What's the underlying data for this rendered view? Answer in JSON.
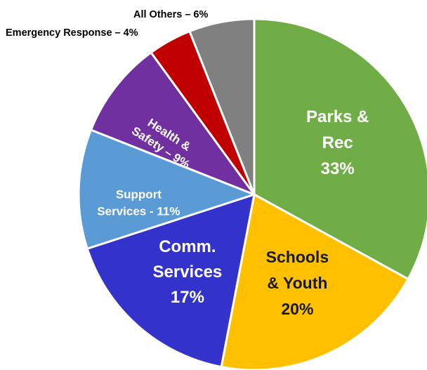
{
  "chart_data": {
    "type": "pie",
    "title": "",
    "slices": [
      {
        "name": "Parks & Rec",
        "value": 33,
        "color": "#70AD47",
        "label_lines": [
          "Parks &",
          "Rec",
          "33%"
        ],
        "label_color": "#ffffff"
      },
      {
        "name": "Schools & Youth",
        "value": 20,
        "color": "#FFC000",
        "label_lines": [
          "Schools",
          "& Youth",
          "20%"
        ],
        "label_color": "#1a1a1a"
      },
      {
        "name": "Comm. Services",
        "value": 17,
        "color": "#3333CC",
        "label_lines": [
          "Comm.",
          "Services",
          "17%"
        ],
        "label_color": "#ffffff"
      },
      {
        "name": "Support Services",
        "value": 11,
        "color": "#5B9BD5",
        "label_lines": [
          "Support",
          "Services - 11%"
        ],
        "label_color": "#ffffff"
      },
      {
        "name": "Health & Safety",
        "value": 9,
        "color": "#7030A0",
        "label_lines": [
          "Health &",
          "Safety – 9%"
        ],
        "label_color": "#ffffff"
      },
      {
        "name": "Emergency Response",
        "value": 4,
        "color": "#C00000",
        "label_lines": [
          "Emergency Response – 4%"
        ],
        "label_color": "#000000"
      },
      {
        "name": "All Others",
        "value": 6,
        "color": "#808080",
        "label_lines": [
          "All Others – 6%"
        ],
        "label_color": "#000000"
      }
    ]
  }
}
